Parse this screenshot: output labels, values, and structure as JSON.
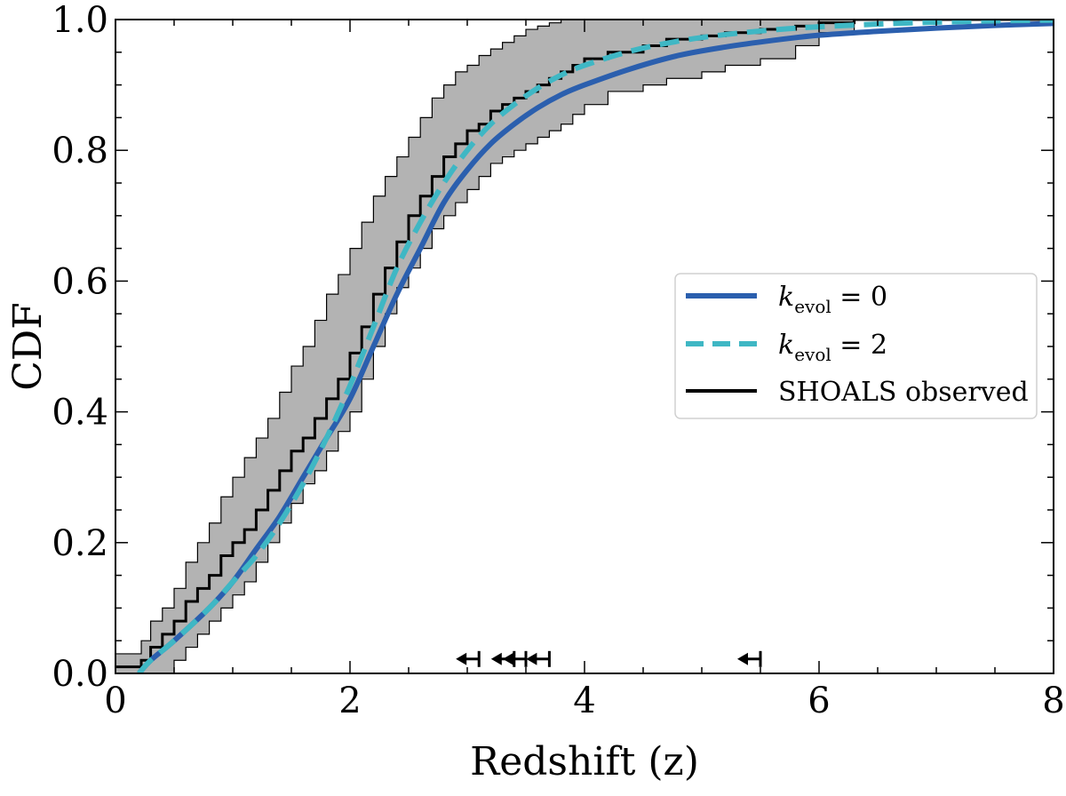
{
  "chart_data": {
    "type": "line",
    "title": "",
    "xlabel": "Redshift (z)",
    "ylabel": "CDF",
    "xlim": [
      0,
      8
    ],
    "ylim": [
      0,
      1
    ],
    "xticks": [
      0,
      2,
      4,
      6,
      8
    ],
    "xtick_labels": [
      "0",
      "2",
      "4",
      "6",
      "8"
    ],
    "yticks": [
      0.0,
      0.2,
      0.4,
      0.6,
      0.8,
      1.0
    ],
    "ytick_labels": [
      "0.0",
      "0.2",
      "0.4",
      "0.6",
      "0.8",
      "1.0"
    ],
    "grid": false,
    "legend_position": "center-right",
    "colors": {
      "kevol0": "#2b5fae",
      "kevol2": "#3fb7c4",
      "observed": "#000000",
      "band_fill": "#b3b3b3"
    },
    "series": [
      {
        "name": "k_evol = 0",
        "legend_main": "k",
        "legend_sub": "evol",
        "legend_rest": " = 0",
        "style": "solid",
        "x": [
          0.2,
          0.3,
          0.5,
          0.8,
          1.0,
          1.2,
          1.4,
          1.6,
          1.8,
          2.0,
          2.2,
          2.4,
          2.6,
          2.8,
          3.0,
          3.2,
          3.4,
          3.6,
          3.8,
          4.0,
          4.4,
          4.8,
          5.2,
          5.6,
          6.0,
          6.5,
          7.0,
          7.5,
          8.0
        ],
        "y": [
          0.0,
          0.02,
          0.05,
          0.1,
          0.14,
          0.19,
          0.24,
          0.3,
          0.36,
          0.42,
          0.5,
          0.58,
          0.65,
          0.72,
          0.77,
          0.81,
          0.84,
          0.865,
          0.885,
          0.9,
          0.925,
          0.945,
          0.958,
          0.968,
          0.976,
          0.982,
          0.987,
          0.991,
          0.994
        ]
      },
      {
        "name": "k_evol = 2",
        "legend_main": "k",
        "legend_sub": "evol",
        "legend_rest": " = 2",
        "style": "dashed",
        "x": [
          0.2,
          0.3,
          0.5,
          0.8,
          1.0,
          1.2,
          1.4,
          1.6,
          1.8,
          2.0,
          2.2,
          2.4,
          2.6,
          2.8,
          3.0,
          3.2,
          3.4,
          3.6,
          3.8,
          4.0,
          4.4,
          4.8,
          5.2,
          5.6,
          6.0,
          6.5,
          7.0,
          7.5,
          8.0
        ],
        "y": [
          0.0,
          0.02,
          0.05,
          0.1,
          0.14,
          0.18,
          0.23,
          0.29,
          0.36,
          0.44,
          0.53,
          0.62,
          0.69,
          0.75,
          0.8,
          0.84,
          0.87,
          0.895,
          0.915,
          0.93,
          0.952,
          0.967,
          0.977,
          0.984,
          0.989,
          0.993,
          0.996,
          0.998,
          0.999
        ]
      },
      {
        "name": "SHOALS observed",
        "legend_label": "SHOALS observed",
        "style": "step",
        "x": [
          0.0,
          0.22,
          0.3,
          0.4,
          0.5,
          0.6,
          0.7,
          0.8,
          0.9,
          1.0,
          1.1,
          1.2,
          1.3,
          1.4,
          1.5,
          1.6,
          1.7,
          1.8,
          1.9,
          2.0,
          2.1,
          2.2,
          2.3,
          2.4,
          2.5,
          2.6,
          2.7,
          2.8,
          2.9,
          3.0,
          3.1,
          3.2,
          3.3,
          3.4,
          3.5,
          3.6,
          3.7,
          3.8,
          3.9,
          4.0,
          4.2,
          4.5,
          4.7,
          5.0,
          5.2,
          5.5,
          5.8,
          6.0,
          6.3,
          8.0
        ],
        "y": [
          0.01,
          0.02,
          0.04,
          0.06,
          0.08,
          0.11,
          0.13,
          0.15,
          0.18,
          0.2,
          0.22,
          0.25,
          0.28,
          0.31,
          0.34,
          0.36,
          0.39,
          0.42,
          0.45,
          0.49,
          0.53,
          0.58,
          0.62,
          0.66,
          0.7,
          0.73,
          0.76,
          0.79,
          0.81,
          0.83,
          0.84,
          0.86,
          0.87,
          0.88,
          0.89,
          0.9,
          0.91,
          0.92,
          0.93,
          0.94,
          0.95,
          0.96,
          0.97,
          0.975,
          0.98,
          0.985,
          0.99,
          0.995,
          1.0,
          1.0
        ]
      }
    ],
    "confidence_band": {
      "name": "SHOALS observed uncertainty",
      "x": [
        0.0,
        0.22,
        0.3,
        0.4,
        0.5,
        0.6,
        0.7,
        0.8,
        0.9,
        1.0,
        1.1,
        1.2,
        1.3,
        1.4,
        1.5,
        1.6,
        1.7,
        1.8,
        1.9,
        2.0,
        2.1,
        2.2,
        2.3,
        2.4,
        2.5,
        2.6,
        2.7,
        2.8,
        2.9,
        3.0,
        3.1,
        3.2,
        3.3,
        3.4,
        3.5,
        3.6,
        3.7,
        3.8,
        3.9,
        4.0,
        4.2,
        4.5,
        4.7,
        5.0,
        5.2,
        5.5,
        5.8,
        6.0,
        6.3,
        8.0
      ],
      "upper": [
        0.03,
        0.05,
        0.08,
        0.1,
        0.13,
        0.17,
        0.2,
        0.23,
        0.27,
        0.3,
        0.33,
        0.36,
        0.39,
        0.43,
        0.47,
        0.5,
        0.54,
        0.58,
        0.61,
        0.65,
        0.69,
        0.73,
        0.76,
        0.79,
        0.82,
        0.85,
        0.88,
        0.9,
        0.92,
        0.93,
        0.945,
        0.955,
        0.965,
        0.975,
        0.985,
        0.99,
        0.995,
        1.0,
        1.0,
        1.0,
        1.0,
        1.0,
        1.0,
        1.0,
        1.0,
        1.0,
        1.0,
        1.0,
        1.0,
        1.0
      ],
      "lower": [
        0.0,
        0.0,
        0.0,
        0.0,
        0.0,
        0.02,
        0.04,
        0.06,
        0.08,
        0.1,
        0.12,
        0.14,
        0.17,
        0.2,
        0.23,
        0.26,
        0.29,
        0.31,
        0.34,
        0.37,
        0.4,
        0.45,
        0.5,
        0.55,
        0.59,
        0.62,
        0.65,
        0.68,
        0.7,
        0.72,
        0.74,
        0.76,
        0.78,
        0.79,
        0.8,
        0.81,
        0.82,
        0.83,
        0.84,
        0.855,
        0.87,
        0.89,
        0.9,
        0.91,
        0.92,
        0.93,
        0.94,
        0.96,
        0.98,
        1.0
      ]
    },
    "upper_limit_markers": {
      "name": "redshift upper limits",
      "y": 0.022,
      "x": [
        3.1,
        3.4,
        3.5,
        3.7,
        5.5
      ]
    }
  }
}
